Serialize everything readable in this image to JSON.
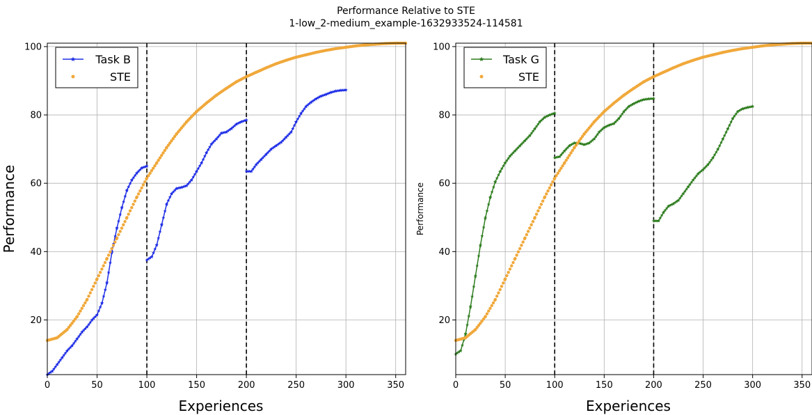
{
  "figure": {
    "title_line1": "Performance Relative to STE",
    "title_line2": "1-low_2-medium_example-1632933524-114581"
  },
  "chart_data": [
    {
      "type": "line",
      "xlabel": "Experiences",
      "ylabel": "Performance",
      "xlim": [
        0,
        360
      ],
      "ylim": [
        4,
        101
      ],
      "xticks": [
        0,
        50,
        100,
        150,
        200,
        250,
        300,
        350
      ],
      "yticks": [
        20,
        40,
        60,
        80,
        100
      ],
      "grid": true,
      "legend_position": "top-left",
      "vlines": [
        100,
        200
      ],
      "series": [
        {
          "name": "Task B",
          "color": "#1f2ee6",
          "style": "line-star",
          "segments": [
            [
              [
                0,
                4
              ],
              [
                5,
                5
              ],
              [
                10,
                7
              ],
              [
                15,
                9
              ],
              [
                20,
                11
              ],
              [
                25,
                12.5
              ],
              [
                30,
                14.5
              ],
              [
                35,
                16.5
              ],
              [
                40,
                18
              ],
              [
                45,
                20
              ],
              [
                50,
                21.5
              ],
              [
                55,
                25
              ],
              [
                60,
                31
              ],
              [
                65,
                40
              ],
              [
                70,
                47
              ],
              [
                75,
                53
              ],
              [
                80,
                58
              ],
              [
                85,
                61
              ],
              [
                90,
                63
              ],
              [
                95,
                64.5
              ],
              [
                100,
                65
              ]
            ],
            [
              [
                100,
                37.5
              ],
              [
                105,
                38.5
              ],
              [
                110,
                42
              ],
              [
                115,
                48
              ],
              [
                120,
                54
              ],
              [
                125,
                57
              ],
              [
                130,
                58.5
              ],
              [
                135,
                58.8
              ],
              [
                140,
                59.3
              ],
              [
                145,
                61
              ],
              [
                150,
                63.5
              ],
              [
                155,
                66
              ],
              [
                160,
                69
              ],
              [
                165,
                71.5
              ],
              [
                170,
                73
              ],
              [
                175,
                74.7
              ],
              [
                180,
                75
              ],
              [
                185,
                76
              ],
              [
                190,
                77.3
              ],
              [
                195,
                78
              ],
              [
                200,
                78.5
              ]
            ],
            [
              [
                200,
                63.5
              ],
              [
                205,
                63.5
              ],
              [
                210,
                65.5
              ],
              [
                215,
                67
              ],
              [
                220,
                68.5
              ],
              [
                225,
                70
              ],
              [
                230,
                71
              ],
              [
                235,
                72
              ],
              [
                240,
                73.5
              ],
              [
                245,
                75
              ],
              [
                250,
                78
              ],
              [
                255,
                80.5
              ],
              [
                260,
                82.5
              ],
              [
                265,
                83.7
              ],
              [
                270,
                84.7
              ],
              [
                275,
                85.5
              ],
              [
                280,
                86
              ],
              [
                285,
                86.6
              ],
              [
                290,
                87
              ],
              [
                295,
                87.2
              ],
              [
                300,
                87.3
              ]
            ]
          ]
        },
        {
          "name": "STE",
          "color": "#f0a83a",
          "style": "dots",
          "segments": [
            [
              [
                0,
                14
              ],
              [
                10,
                14.8
              ],
              [
                20,
                17.2
              ],
              [
                30,
                21
              ],
              [
                40,
                26
              ],
              [
                50,
                32
              ],
              [
                60,
                38
              ],
              [
                70,
                44
              ],
              [
                80,
                50
              ],
              [
                90,
                56
              ],
              [
                100,
                61.5
              ],
              [
                110,
                66
              ],
              [
                120,
                70.5
              ],
              [
                130,
                74.5
              ],
              [
                140,
                78
              ],
              [
                150,
                81
              ],
              [
                160,
                83.5
              ],
              [
                170,
                85.8
              ],
              [
                180,
                87.8
              ],
              [
                190,
                89.7
              ],
              [
                200,
                91.2
              ],
              [
                210,
                92.5
              ],
              [
                220,
                93.8
              ],
              [
                230,
                95
              ],
              [
                240,
                96
              ],
              [
                250,
                96.9
              ],
              [
                260,
                97.6
              ],
              [
                270,
                98.3
              ],
              [
                280,
                98.9
              ],
              [
                290,
                99.4
              ],
              [
                300,
                99.8
              ],
              [
                310,
                100.2
              ],
              [
                320,
                100.5
              ],
              [
                330,
                100.7
              ],
              [
                340,
                100.9
              ],
              [
                350,
                101
              ],
              [
                360,
                101
              ]
            ]
          ]
        }
      ]
    },
    {
      "type": "line",
      "xlabel": "Experiences",
      "ylabel": "Performance",
      "xlim": [
        0,
        360
      ],
      "ylim": [
        4,
        101
      ],
      "xticks": [
        0,
        50,
        100,
        150,
        200,
        250,
        300,
        350
      ],
      "yticks": [
        20,
        40,
        60,
        80,
        100
      ],
      "grid": true,
      "legend_position": "top-left",
      "vlines": [
        100,
        200
      ],
      "series": [
        {
          "name": "Task G",
          "color": "#2e7d1f",
          "style": "line-star",
          "segments": [
            [
              [
                0,
                10
              ],
              [
                5,
                11
              ],
              [
                10,
                16
              ],
              [
                15,
                24
              ],
              [
                20,
                33
              ],
              [
                25,
                42
              ],
              [
                30,
                50
              ],
              [
                35,
                56
              ],
              [
                40,
                60.5
              ],
              [
                45,
                63.5
              ],
              [
                50,
                66
              ],
              [
                55,
                68
              ],
              [
                60,
                69.5
              ],
              [
                65,
                71
              ],
              [
                70,
                72.5
              ],
              [
                75,
                74
              ],
              [
                80,
                76
              ],
              [
                85,
                78
              ],
              [
                90,
                79.3
              ],
              [
                95,
                80
              ],
              [
                100,
                80.5
              ]
            ],
            [
              [
                100,
                67.5
              ],
              [
                105,
                67.8
              ],
              [
                110,
                69.5
              ],
              [
                115,
                71
              ],
              [
                120,
                71.8
              ],
              [
                125,
                71.7
              ],
              [
                130,
                71.3
              ],
              [
                135,
                71.8
              ],
              [
                140,
                73
              ],
              [
                145,
                75
              ],
              [
                150,
                76.3
              ],
              [
                155,
                77
              ],
              [
                160,
                77.5
              ],
              [
                165,
                79
              ],
              [
                170,
                81
              ],
              [
                175,
                82.5
              ],
              [
                180,
                83.3
              ],
              [
                185,
                84
              ],
              [
                190,
                84.5
              ],
              [
                195,
                84.7
              ],
              [
                200,
                84.8
              ]
            ],
            [
              [
                200,
                49
              ],
              [
                205,
                49
              ],
              [
                210,
                51.5
              ],
              [
                215,
                53.3
              ],
              [
                220,
                54
              ],
              [
                225,
                55
              ],
              [
                230,
                57
              ],
              [
                235,
                59
              ],
              [
                240,
                61
              ],
              [
                245,
                62.8
              ],
              [
                250,
                64
              ],
              [
                255,
                65.5
              ],
              [
                260,
                67.5
              ],
              [
                265,
                70
              ],
              [
                270,
                73
              ],
              [
                275,
                76
              ],
              [
                280,
                79
              ],
              [
                285,
                81
              ],
              [
                290,
                81.8
              ],
              [
                295,
                82.2
              ],
              [
                300,
                82.5
              ]
            ]
          ]
        },
        {
          "name": "STE",
          "color": "#f0a83a",
          "style": "dots",
          "segments": [
            [
              [
                0,
                14
              ],
              [
                10,
                14.8
              ],
              [
                20,
                17.2
              ],
              [
                30,
                21
              ],
              [
                40,
                26
              ],
              [
                50,
                32
              ],
              [
                60,
                38
              ],
              [
                70,
                44
              ],
              [
                80,
                50
              ],
              [
                90,
                56
              ],
              [
                100,
                61.5
              ],
              [
                110,
                66
              ],
              [
                120,
                70.5
              ],
              [
                130,
                74.5
              ],
              [
                140,
                78
              ],
              [
                150,
                81
              ],
              [
                160,
                83.5
              ],
              [
                170,
                85.8
              ],
              [
                180,
                87.8
              ],
              [
                190,
                89.7
              ],
              [
                200,
                91.2
              ],
              [
                210,
                92.5
              ],
              [
                220,
                93.8
              ],
              [
                230,
                95
              ],
              [
                240,
                96
              ],
              [
                250,
                96.9
              ],
              [
                260,
                97.6
              ],
              [
                270,
                98.3
              ],
              [
                280,
                98.9
              ],
              [
                290,
                99.4
              ],
              [
                300,
                99.8
              ],
              [
                310,
                100.2
              ],
              [
                320,
                100.5
              ],
              [
                330,
                100.7
              ],
              [
                340,
                100.9
              ],
              [
                350,
                101
              ],
              [
                360,
                101
              ]
            ]
          ]
        }
      ]
    }
  ]
}
